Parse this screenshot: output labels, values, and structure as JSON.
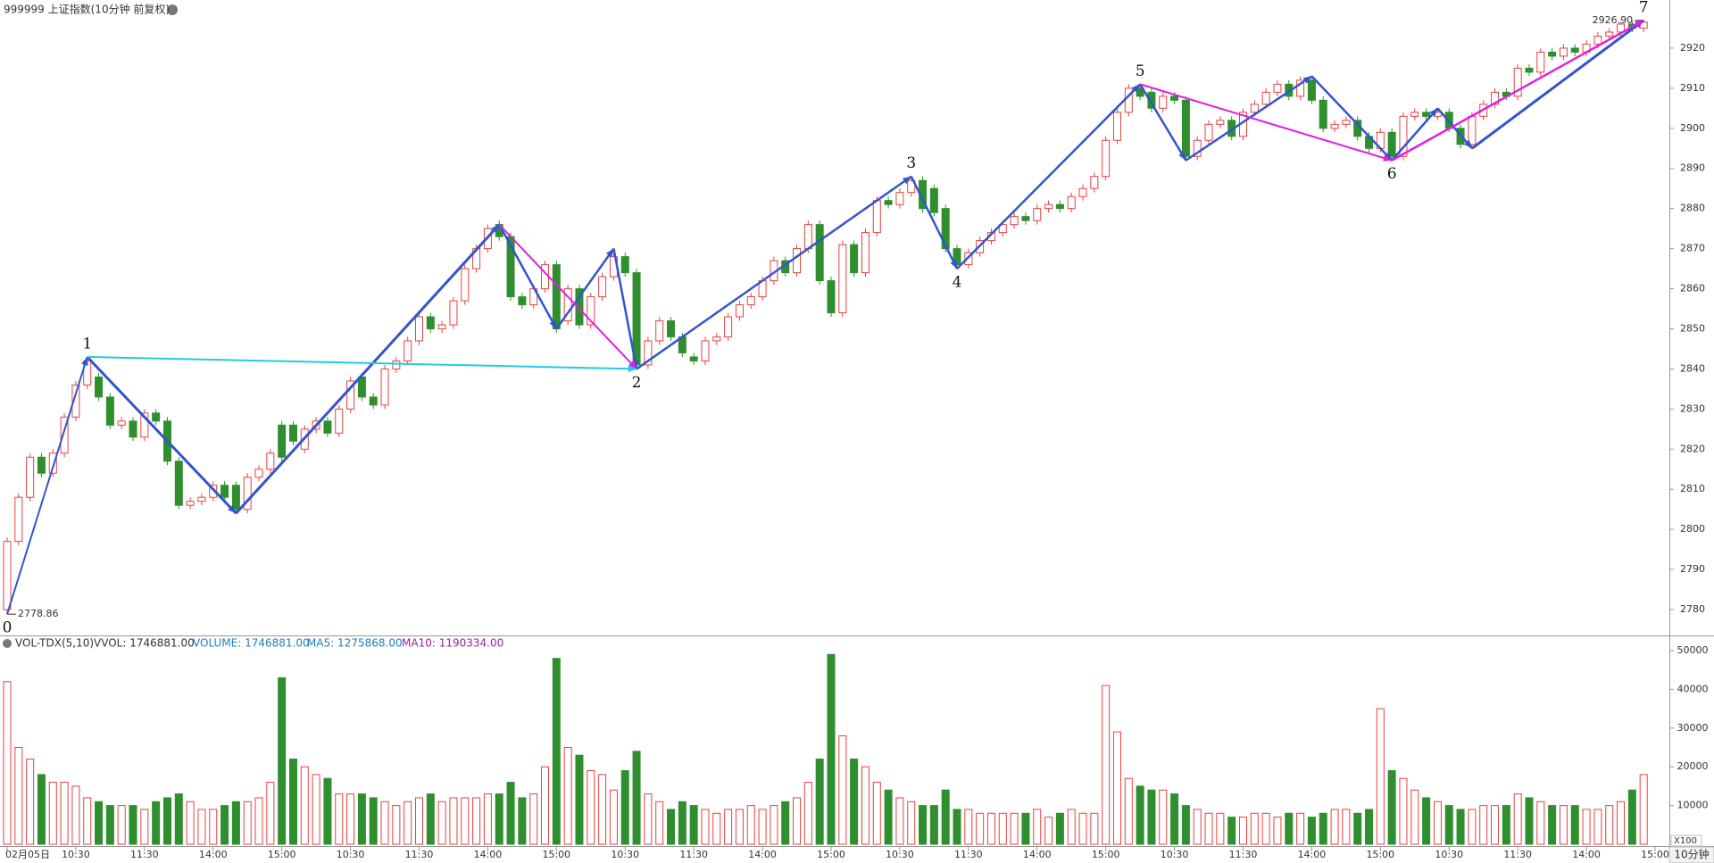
{
  "chart_data": {
    "type": "candlestick",
    "title": "999999 上证指数(10分钟 前复权)",
    "up_color": "#e8413f",
    "down_color": "#2f8f2f",
    "open": [
      2780,
      2797,
      2808,
      2818,
      2814,
      2819,
      2828,
      2836,
      2838,
      2833,
      2826,
      2827,
      2823,
      2829,
      2827,
      2817,
      2806,
      2807,
      2808,
      2811,
      2811,
      2805,
      2813,
      2815,
      2826,
      2826,
      2820,
      2825,
      2827,
      2824,
      2830,
      2838,
      2833,
      2831,
      2840,
      2842,
      2847,
      2853,
      2850,
      2851,
      2857,
      2865,
      2870,
      2876,
      2873,
      2858,
      2856,
      2860,
      2866,
      2852,
      2860,
      2851,
      2858,
      2863,
      2868,
      2864,
      2841,
      2847,
      2852,
      2848,
      2843,
      2842,
      2847,
      2848,
      2853,
      2856,
      2858,
      2862,
      2867,
      2864,
      2870,
      2876,
      2862,
      2854,
      2871,
      2864,
      2874,
      2882,
      2881,
      2884,
      2887,
      2885,
      2880,
      2870,
      2866,
      2869,
      2872,
      2874,
      2876,
      2878,
      2877,
      2880,
      2881,
      2880,
      2883,
      2885,
      2888,
      2897,
      2904,
      2910,
      2909,
      2905,
      2908,
      2907,
      2893,
      2897,
      2901,
      2902,
      2898,
      2904,
      2906,
      2909,
      2911,
      2908,
      2912,
      2907,
      2900,
      2901,
      2902,
      2898,
      2895,
      2899,
      2893,
      2903,
      2904,
      2903,
      2904,
      2900,
      2896,
      2903,
      2906,
      2909,
      2908,
      2915,
      2914,
      2919,
      2918,
      2920,
      2919,
      2921,
      2923,
      2924,
      2926,
      2925
    ],
    "high": [
      2798,
      2809,
      2819,
      2819,
      2820,
      2829,
      2837,
      2843,
      2839,
      2834,
      2828,
      2828,
      2830,
      2830,
      2828,
      2818,
      2808,
      2809,
      2812,
      2812,
      2812,
      2814,
      2816,
      2820,
      2827,
      2827,
      2826,
      2828,
      2828,
      2831,
      2838,
      2839,
      2834,
      2841,
      2843,
      2848,
      2854,
      2854,
      2852,
      2858,
      2866,
      2871,
      2876,
      2877,
      2874,
      2859,
      2861,
      2867,
      2867,
      2861,
      2861,
      2859,
      2864,
      2869,
      2869,
      2865,
      2848,
      2853,
      2853,
      2849,
      2844,
      2848,
      2849,
      2854,
      2857,
      2859,
      2863,
      2868,
      2868,
      2871,
      2877,
      2877,
      2863,
      2872,
      2872,
      2875,
      2883,
      2883,
      2885,
      2888,
      2888,
      2886,
      2881,
      2871,
      2870,
      2873,
      2875,
      2877,
      2879,
      2879,
      2881,
      2882,
      2882,
      2884,
      2886,
      2889,
      2898,
      2905,
      2911,
      2911,
      2910,
      2909,
      2909,
      2908,
      2898,
      2902,
      2903,
      2903,
      2905,
      2907,
      2910,
      2912,
      2912,
      2913,
      2913,
      2908,
      2902,
      2903,
      2903,
      2899,
      2900,
      2900,
      2904,
      2905,
      2905,
      2905,
      2905,
      2901,
      2904,
      2907,
      2910,
      2910,
      2916,
      2916,
      2920,
      2920,
      2921,
      2921,
      2922,
      2924,
      2925,
      2926.5,
      2926.8,
      2926.9
    ],
    "low": [
      2778.86,
      2796,
      2807,
      2813,
      2813,
      2818,
      2827,
      2835,
      2832,
      2825,
      2825,
      2822,
      2822,
      2826,
      2816,
      2805,
      2805,
      2806,
      2807,
      2807,
      2804,
      2804,
      2812,
      2814,
      2817,
      2821,
      2819,
      2824,
      2823,
      2823,
      2829,
      2832,
      2830,
      2830,
      2839,
      2841,
      2846,
      2849,
      2849,
      2850,
      2856,
      2864,
      2869,
      2872,
      2857,
      2855,
      2855,
      2859,
      2849,
      2851,
      2850,
      2850,
      2857,
      2862,
      2863,
      2840,
      2840,
      2846,
      2847,
      2843,
      2841,
      2841,
      2846,
      2847,
      2852,
      2855,
      2857,
      2861,
      2863,
      2863,
      2869,
      2861,
      2853,
      2853,
      2863,
      2863,
      2873,
      2880,
      2880,
      2883,
      2879,
      2878,
      2869,
      2865,
      2865,
      2868,
      2871,
      2873,
      2875,
      2876,
      2876,
      2879,
      2879,
      2879,
      2882,
      2884,
      2887,
      2896,
      2903,
      2907,
      2904,
      2904,
      2906,
      2892,
      2892,
      2896,
      2900,
      2897,
      2897,
      2903,
      2905,
      2908,
      2907,
      2907,
      2906,
      2899,
      2899,
      2900,
      2897,
      2894,
      2894,
      2892,
      2892,
      2902,
      2902,
      2902,
      2899,
      2895,
      2895,
      2902,
      2905,
      2907,
      2907,
      2913,
      2913,
      2917,
      2917,
      2918,
      2918,
      2920,
      2922,
      2923,
      2924,
      2924
    ],
    "close": [
      2797,
      2808,
      2818,
      2814,
      2819,
      2828,
      2836,
      2842,
      2833,
      2826,
      2827,
      2823,
      2829,
      2827,
      2817,
      2806,
      2807,
      2808,
      2811,
      2808,
      2805,
      2813,
      2815,
      2819,
      2818,
      2822,
      2825,
      2827,
      2824,
      2830,
      2837,
      2833,
      2831,
      2840,
      2842,
      2847,
      2853,
      2850,
      2851,
      2857,
      2865,
      2870,
      2875,
      2873,
      2858,
      2856,
      2860,
      2866,
      2850,
      2860,
      2851,
      2858,
      2863,
      2868,
      2864,
      2841,
      2847,
      2852,
      2848,
      2844,
      2842,
      2847,
      2848,
      2853,
      2856,
      2858,
      2862,
      2867,
      2864,
      2870,
      2876,
      2862,
      2854,
      2871,
      2864,
      2874,
      2882,
      2881,
      2884,
      2887,
      2880,
      2879,
      2870,
      2866,
      2869,
      2872,
      2874,
      2876,
      2878,
      2877,
      2880,
      2881,
      2880,
      2883,
      2885,
      2888,
      2897,
      2904,
      2910,
      2908,
      2905,
      2908,
      2907,
      2893,
      2897,
      2901,
      2902,
      2898,
      2904,
      2906,
      2909,
      2911,
      2908,
      2912,
      2907,
      2900,
      2901,
      2902,
      2898,
      2895,
      2899,
      2893,
      2903,
      2904,
      2903,
      2904,
      2900,
      2896,
      2903,
      2906,
      2909,
      2908,
      2915,
      2914,
      2919,
      2918,
      2920,
      2919,
      2921,
      2923,
      2924,
      2926,
      2925,
      2926.5
    ],
    "ylim": [
      2774,
      2932
    ],
    "yticks": [
      2780,
      2790,
      2800,
      2810,
      2820,
      2830,
      2840,
      2850,
      2860,
      2870,
      2880,
      2890,
      2900,
      2910,
      2920
    ],
    "xlim": [
      0,
      144
    ],
    "xticks": [
      {
        "value": 0,
        "label": "02月05日"
      },
      {
        "value": 6,
        "label": "10:30"
      },
      {
        "value": 12,
        "label": "11:30"
      },
      {
        "value": 18,
        "label": "14:00"
      },
      {
        "value": 24,
        "label": "15:00"
      },
      {
        "value": 30,
        "label": "10:30"
      },
      {
        "value": 36,
        "label": "11:30"
      },
      {
        "value": 42,
        "label": "14:00"
      },
      {
        "value": 48,
        "label": "15:00"
      },
      {
        "value": 54,
        "label": "10:30"
      },
      {
        "value": 60,
        "label": "11:30"
      },
      {
        "value": 66,
        "label": "14:00"
      },
      {
        "value": 72,
        "label": "15:00"
      },
      {
        "value": 78,
        "label": "10:30"
      },
      {
        "value": 84,
        "label": "11:30"
      },
      {
        "value": 90,
        "label": "14:00"
      },
      {
        "value": 96,
        "label": "15:00"
      },
      {
        "value": 102,
        "label": "10:30"
      },
      {
        "value": 108,
        "label": "11:30"
      },
      {
        "value": 114,
        "label": "14:00"
      },
      {
        "value": 120,
        "label": "15:00"
      },
      {
        "value": 126,
        "label": "10:30"
      },
      {
        "value": 132,
        "label": "11:30"
      },
      {
        "value": 138,
        "label": "14:00"
      },
      {
        "value": 144,
        "label": "15:00"
      }
    ],
    "annotations": [
      {
        "text": "2778.86",
        "index": 0,
        "price": 2778.86
      },
      {
        "text": "2926.90",
        "index": 143,
        "price": 2926.9
      }
    ],
    "wave_points": [
      {
        "label": "0",
        "index": 0,
        "price": 2778.86,
        "position": "below"
      },
      {
        "label": "1",
        "index": 7,
        "price": 2843,
        "position": "above"
      },
      {
        "label": "2",
        "index": 55,
        "price": 2840,
        "position": "below"
      },
      {
        "label": "3",
        "index": 79,
        "price": 2888,
        "position": "above"
      },
      {
        "label": "4",
        "index": 83,
        "price": 2865,
        "position": "below"
      },
      {
        "label": "5",
        "index": 99,
        "price": 2911,
        "position": "above"
      },
      {
        "label": "6",
        "index": 121,
        "price": 2892,
        "position": "below"
      },
      {
        "label": "7",
        "index": 143,
        "price": 2926.9,
        "position": "above"
      }
    ],
    "drawings": [
      {
        "from": [
          0,
          2778.86
        ],
        "to": [
          7,
          2843
        ],
        "color": "#3355cc",
        "width": 2
      },
      {
        "from": [
          7,
          2843
        ],
        "to": [
          20,
          2804
        ],
        "color": "#3355cc",
        "width": 3
      },
      {
        "from": [
          20,
          2804
        ],
        "to": [
          43,
          2876
        ],
        "color": "#3355cc",
        "width": 3
      },
      {
        "from": [
          43,
          2876
        ],
        "to": [
          48,
          2850
        ],
        "color": "#3355cc",
        "width": 2.5
      },
      {
        "from": [
          48,
          2850
        ],
        "to": [
          53,
          2870
        ],
        "color": "#3355cc",
        "width": 2.5
      },
      {
        "from": [
          53,
          2870
        ],
        "to": [
          55,
          2840
        ],
        "color": "#3355cc",
        "width": 2.5
      },
      {
        "from": [
          43,
          2876
        ],
        "to": [
          55,
          2840
        ],
        "color": "#e020e0",
        "width": 2
      },
      {
        "from": [
          7,
          2843
        ],
        "to": [
          55,
          2840
        ],
        "color": "#22ccdd",
        "width": 2
      },
      {
        "from": [
          55,
          2840
        ],
        "to": [
          79,
          2888
        ],
        "color": "#3355cc",
        "width": 2.5
      },
      {
        "from": [
          79,
          2888
        ],
        "to": [
          83,
          2865
        ],
        "color": "#3355cc",
        "width": 2.5
      },
      {
        "from": [
          83,
          2865
        ],
        "to": [
          99,
          2911
        ],
        "color": "#3355cc",
        "width": 2.5
      },
      {
        "from": [
          99,
          2911
        ],
        "to": [
          103,
          2892
        ],
        "color": "#3355cc",
        "width": 2.5
      },
      {
        "from": [
          103,
          2892
        ],
        "to": [
          114,
          2913
        ],
        "color": "#3355cc",
        "width": 2.5
      },
      {
        "from": [
          114,
          2913
        ],
        "to": [
          121,
          2892
        ],
        "color": "#3355cc",
        "width": 2.5
      },
      {
        "from": [
          99,
          2911
        ],
        "to": [
          121,
          2892
        ],
        "color": "#e020e0",
        "width": 2
      },
      {
        "from": [
          121,
          2892
        ],
        "to": [
          125,
          2905
        ],
        "color": "#3355cc",
        "width": 2.5
      },
      {
        "from": [
          125,
          2905
        ],
        "to": [
          128,
          2895
        ],
        "color": "#3355cc",
        "width": 2.5
      },
      {
        "from": [
          128,
          2895
        ],
        "to": [
          143,
          2926.9
        ],
        "color": "#3355cc",
        "width": 3
      },
      {
        "from": [
          121,
          2892
        ],
        "to": [
          143,
          2926.9
        ],
        "color": "#e020e0",
        "width": 2.5
      }
    ],
    "volume_panel": {
      "header": "VOL-TDX(5,10)",
      "vvol": "VVOL: 1746881.00",
      "volume_label": "VOLUME: 1746881.00",
      "ma5_label": "MA5: 1275868.00",
      "ma10_label": "MA10: 1190334.00",
      "unit": "X100",
      "values": [
        42000,
        25000,
        22000,
        18000,
        16000,
        16000,
        15000,
        12000,
        11000,
        10000,
        10000,
        10000,
        9000,
        11000,
        12000,
        13000,
        11000,
        9000,
        9000,
        10000,
        11000,
        11000,
        12000,
        16000,
        43000,
        22000,
        20000,
        18000,
        17000,
        13000,
        13000,
        13000,
        12000,
        11000,
        10000,
        11000,
        12000,
        13000,
        11000,
        12000,
        12000,
        12000,
        13000,
        13000,
        16000,
        12000,
        13000,
        20000,
        48000,
        25000,
        23000,
        19000,
        18000,
        14000,
        19000,
        24000,
        13000,
        11000,
        9000,
        11000,
        10000,
        9000,
        8000,
        9000,
        9000,
        10000,
        9000,
        10000,
        11000,
        12000,
        16000,
        22000,
        49000,
        28000,
        22000,
        20000,
        16000,
        14000,
        12000,
        11000,
        10000,
        10000,
        14000,
        9000,
        9000,
        8000,
        8000,
        8000,
        8000,
        8000,
        9000,
        7000,
        8000,
        9000,
        8000,
        8000,
        41000,
        29000,
        17000,
        15000,
        14000,
        14000,
        13000,
        10000,
        9000,
        8000,
        8000,
        7000,
        7000,
        8000,
        8000,
        7000,
        8000,
        8000,
        7000,
        8000,
        9000,
        9000,
        8000,
        9000,
        35000,
        19000,
        17000,
        14000,
        12000,
        11000,
        10000,
        9000,
        9000,
        10000,
        10000,
        10000,
        13000,
        12000,
        11000,
        10000,
        10000,
        10000,
        9000,
        9000,
        10000,
        11000,
        14000,
        18000
      ],
      "ylim": [
        0,
        53000
      ],
      "yticks": [
        10000,
        20000,
        30000,
        40000,
        50000
      ]
    },
    "period": "10分钟"
  }
}
